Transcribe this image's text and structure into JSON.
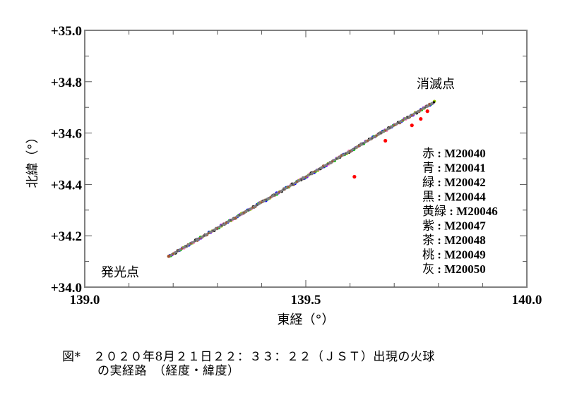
{
  "chart_data": {
    "type": "scatter",
    "title": "",
    "xlabel": "東経（°）",
    "ylabel": "北緯（°）",
    "xlim": [
      139.0,
      140.0
    ],
    "ylim": [
      34.0,
      35.0
    ],
    "x_ticks": [
      "139.0",
      "139.5",
      "140.0"
    ],
    "y_ticks": [
      "+34.0",
      "+34.2",
      "+34.4",
      "+34.6",
      "+34.8",
      "+35.0"
    ],
    "grid": false,
    "legend_position": "right-inside",
    "annotations": [
      {
        "text": "発光点",
        "x": 139.04,
        "y": 34.05
      },
      {
        "text": "消滅点",
        "x": 139.76,
        "y": 34.78
      }
    ],
    "start_point": {
      "x": 139.19,
      "y": 34.12
    },
    "end_point": {
      "x": 139.79,
      "y": 34.72
    },
    "series": [
      {
        "name": "M20040",
        "color_label": "赤",
        "color": "#ff0000",
        "x": [
          139.19,
          139.79
        ],
        "y": [
          34.12,
          34.71
        ],
        "outliers": [
          [
            139.61,
            34.43
          ],
          [
            139.68,
            34.57
          ],
          [
            139.74,
            34.63
          ],
          [
            139.76,
            34.655
          ],
          [
            139.775,
            34.685
          ]
        ]
      },
      {
        "name": "M20041",
        "color_label": "青",
        "color": "#0000ff",
        "x": [
          139.2,
          139.78
        ],
        "y": [
          34.13,
          34.71
        ]
      },
      {
        "name": "M20042",
        "color_label": "緑",
        "color": "#00cc00",
        "x": [
          139.2,
          139.79
        ],
        "y": [
          34.13,
          34.72
        ]
      },
      {
        "name": "M20044",
        "color_label": "黒",
        "color": "#000000",
        "x": [
          139.2,
          139.79
        ],
        "y": [
          34.13,
          34.72
        ]
      },
      {
        "name": "M20046",
        "color_label": "黄緑",
        "color": "#99cc00",
        "x": [
          139.2,
          139.78
        ],
        "y": [
          34.13,
          34.71
        ]
      },
      {
        "name": "M20047",
        "color_label": "紫",
        "color": "#8000ff",
        "x": [
          139.2,
          139.78
        ],
        "y": [
          34.13,
          34.71
        ]
      },
      {
        "name": "M20048",
        "color_label": "茶",
        "color": "#a0522d",
        "x": [
          139.19,
          139.78
        ],
        "y": [
          34.12,
          34.71
        ]
      },
      {
        "name": "M20049",
        "color_label": "桃",
        "color": "#ff80c0",
        "x": [
          139.2,
          139.78
        ],
        "y": [
          34.13,
          34.71
        ]
      },
      {
        "name": "M20050",
        "color_label": "灰",
        "color": "#808080",
        "x": [
          139.19,
          139.79
        ],
        "y": [
          34.12,
          34.72
        ]
      }
    ]
  },
  "labels": {
    "start": "発光点",
    "end": "消滅点",
    "xlabel": "東経（°）",
    "ylabel": "北緯（°）"
  },
  "legend": [
    {
      "key": "赤",
      "value": "M20040"
    },
    {
      "key": "青",
      "value": "M20041"
    },
    {
      "key": "緑",
      "value": "M20042"
    },
    {
      "key": "黒",
      "value": "M20044"
    },
    {
      "key": "黄緑",
      "value": "M20046"
    },
    {
      "key": "紫",
      "value": "M20047"
    },
    {
      "key": "茶",
      "value": "M20048"
    },
    {
      "key": "桃",
      "value": "M20049"
    },
    {
      "key": "灰",
      "value": "M20050"
    }
  ],
  "caption": {
    "line1": "図*　２０２０年8月２１日２２：３３：２２（ＪＳＴ）出現の火球",
    "line2": "の実経路　（経度・緯度）"
  }
}
